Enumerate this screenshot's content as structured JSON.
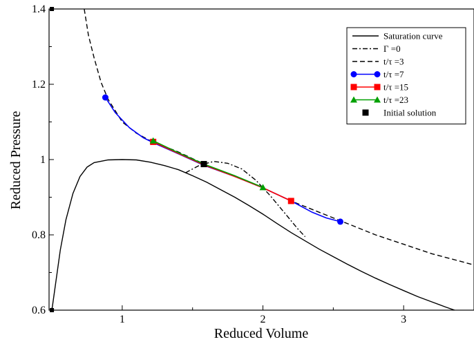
{
  "chart_data": {
    "type": "line",
    "title": "",
    "xlabel": "Reduced Volume",
    "ylabel": "Reduced Pressure",
    "xlim": [
      0.48,
      3.5
    ],
    "ylim": [
      0.6,
      1.4
    ],
    "xticks": [
      1,
      2,
      3
    ],
    "xtick_labels": [
      "1",
      "2",
      "3"
    ],
    "yticks": [
      0.6,
      0.8,
      1.0,
      1.2,
      1.4
    ],
    "ytick_labels": [
      "0.6",
      "0.8",
      "1",
      "1.2",
      "1.4"
    ],
    "grid": false,
    "legend_position": "top-right",
    "series": [
      {
        "name": "Saturation curve",
        "style": "solid",
        "color": "#000000",
        "points": [
          [
            0.5,
            0.6
          ],
          [
            0.53,
            0.68
          ],
          [
            0.56,
            0.76
          ],
          [
            0.6,
            0.84
          ],
          [
            0.65,
            0.91
          ],
          [
            0.7,
            0.955
          ],
          [
            0.75,
            0.98
          ],
          [
            0.8,
            0.992
          ],
          [
            0.9,
            0.999
          ],
          [
            1.0,
            1.0
          ],
          [
            1.1,
            0.999
          ],
          [
            1.2,
            0.993
          ],
          [
            1.3,
            0.984
          ],
          [
            1.4,
            0.973
          ],
          [
            1.5,
            0.957
          ],
          [
            1.6,
            0.94
          ],
          [
            1.7,
            0.92
          ],
          [
            1.8,
            0.9
          ],
          [
            1.9,
            0.878
          ],
          [
            2.0,
            0.855
          ],
          [
            2.1,
            0.83
          ],
          [
            2.2,
            0.806
          ],
          [
            2.3,
            0.784
          ],
          [
            2.4,
            0.762
          ],
          [
            2.5,
            0.742
          ],
          [
            2.6,
            0.722
          ],
          [
            2.7,
            0.703
          ],
          [
            2.8,
            0.685
          ],
          [
            2.9,
            0.668
          ],
          [
            3.0,
            0.652
          ],
          [
            3.1,
            0.636
          ],
          [
            3.2,
            0.622
          ],
          [
            3.3,
            0.608
          ],
          [
            3.4,
            0.595
          ],
          [
            3.5,
            0.583
          ]
        ]
      },
      {
        "name": "Γ =0",
        "style": "dashdot",
        "color": "#000000",
        "points": [
          [
            1.45,
            0.965
          ],
          [
            1.55,
            0.985
          ],
          [
            1.65,
            0.995
          ],
          [
            1.75,
            0.99
          ],
          [
            1.85,
            0.975
          ],
          [
            1.95,
            0.945
          ],
          [
            2.05,
            0.905
          ],
          [
            2.15,
            0.86
          ],
          [
            2.25,
            0.815
          ],
          [
            2.3,
            0.795
          ]
        ]
      },
      {
        "name": "t/τ =3",
        "style": "dashed",
        "color": "#000000",
        "points": [
          [
            0.73,
            1.4
          ],
          [
            0.76,
            1.33
          ],
          [
            0.8,
            1.27
          ],
          [
            0.85,
            1.205
          ],
          [
            0.9,
            1.16
          ],
          [
            1.0,
            1.1
          ],
          [
            1.1,
            1.07
          ],
          [
            1.2,
            1.05
          ],
          [
            1.4,
            1.02
          ],
          [
            1.6,
            0.985
          ],
          [
            1.8,
            0.955
          ],
          [
            2.0,
            0.925
          ],
          [
            2.2,
            0.89
          ],
          [
            2.4,
            0.86
          ],
          [
            2.6,
            0.83
          ],
          [
            2.8,
            0.8
          ],
          [
            3.0,
            0.775
          ],
          [
            3.2,
            0.75
          ],
          [
            3.4,
            0.73
          ],
          [
            3.5,
            0.72
          ]
        ]
      },
      {
        "name": "t/τ =7",
        "style": "solid",
        "color": "#0000ff",
        "marker": "circle",
        "points": [
          [
            0.88,
            1.165
          ],
          [
            0.95,
            1.125
          ],
          [
            1.05,
            1.085
          ],
          [
            1.15,
            1.058
          ],
          [
            1.22,
            1.045
          ],
          [
            1.4,
            1.015
          ],
          [
            1.58,
            0.985
          ],
          [
            1.8,
            0.955
          ],
          [
            2.0,
            0.925
          ],
          [
            2.2,
            0.89
          ],
          [
            2.35,
            0.86
          ],
          [
            2.45,
            0.845
          ],
          [
            2.55,
            0.835
          ]
        ],
        "marker_points": [
          [
            0.88,
            1.165
          ],
          [
            2.55,
            0.835
          ]
        ]
      },
      {
        "name": "t/τ =15",
        "style": "solid",
        "color": "#ff0000",
        "marker": "square",
        "points": [
          [
            1.22,
            1.047
          ],
          [
            1.4,
            1.016
          ],
          [
            1.58,
            0.986
          ],
          [
            1.8,
            0.955
          ],
          [
            2.0,
            0.925
          ],
          [
            2.2,
            0.89
          ]
        ],
        "marker_points": [
          [
            1.22,
            1.047
          ],
          [
            2.2,
            0.89
          ]
        ]
      },
      {
        "name": "t/τ =23",
        "style": "solid",
        "color": "#00a000",
        "marker": "triangle",
        "points": [
          [
            1.22,
            1.05
          ],
          [
            1.4,
            1.018
          ],
          [
            1.58,
            0.988
          ],
          [
            1.8,
            0.957
          ],
          [
            2.0,
            0.926
          ]
        ],
        "marker_points": [
          [
            1.22,
            1.05
          ],
          [
            2.0,
            0.926
          ]
        ]
      },
      {
        "name": "Initial solution",
        "style": "none",
        "color": "#000000",
        "marker": "square",
        "points": [],
        "marker_points": [
          [
            1.58,
            0.988
          ]
        ]
      }
    ],
    "axis_corner_markers": [
      [
        0.5,
        1.4
      ],
      [
        0.5,
        0.6
      ]
    ]
  }
}
